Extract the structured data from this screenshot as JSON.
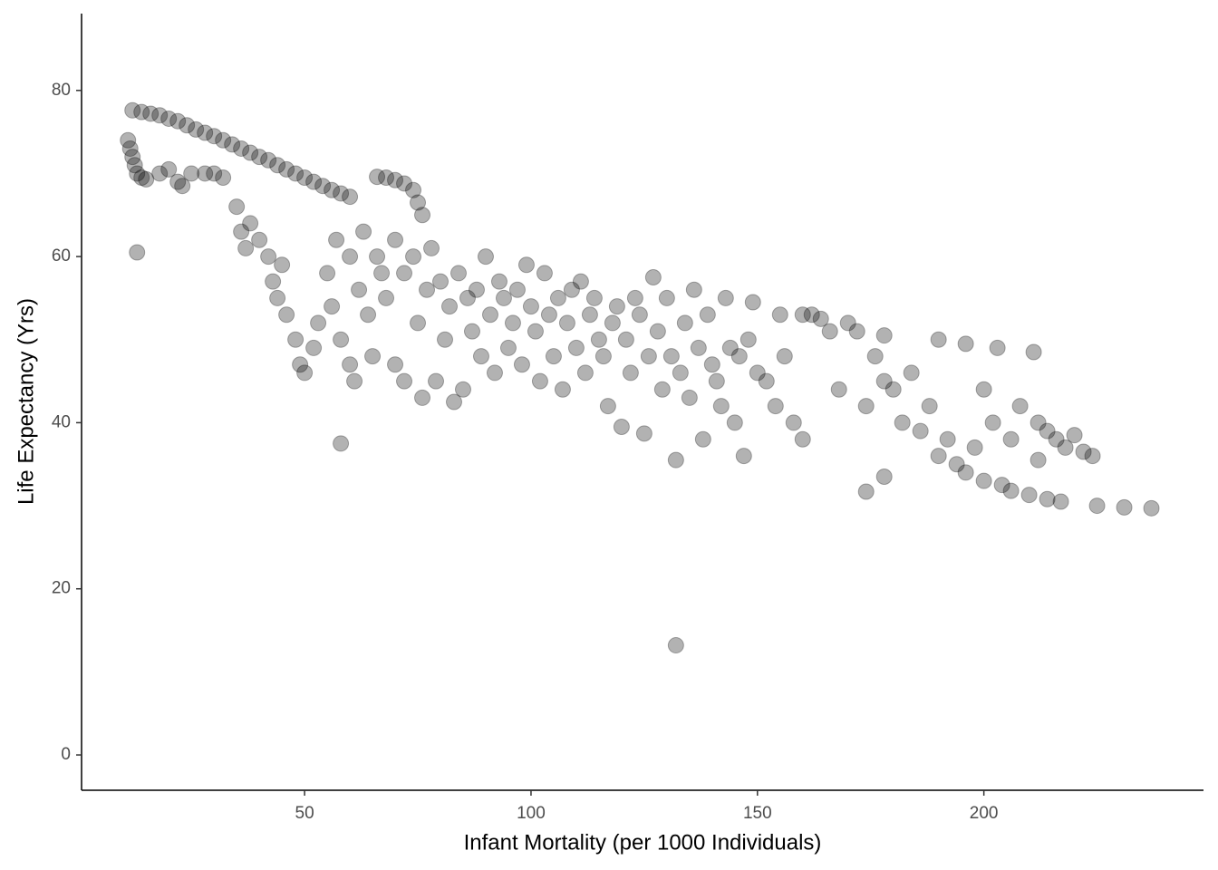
{
  "chart_data": {
    "type": "scatter",
    "x_label": "Infant Mortality (per 1000 Individuals)",
    "y_label": "Life Expectancy (Yrs)",
    "xlim": [
      0.75,
      248.5
    ],
    "ylim": [
      -4.25,
      89.25
    ],
    "xticks": [
      50,
      100,
      150,
      200
    ],
    "yticks": [
      0,
      20,
      40,
      60,
      80
    ],
    "color": "#000000",
    "opacity": 0.3,
    "x": [
      12,
      14,
      16,
      18,
      20,
      22,
      24,
      26,
      28,
      30,
      32,
      34,
      36,
      38,
      40,
      42,
      44,
      46,
      48,
      50,
      52,
      54,
      56,
      58,
      60,
      11,
      11.5,
      12,
      12.5,
      13,
      14,
      15,
      13,
      18,
      20,
      22,
      23,
      25,
      28,
      30,
      32,
      66,
      68,
      70,
      72,
      74,
      75,
      76,
      35,
      36,
      37,
      38,
      40,
      42,
      43,
      44,
      45,
      46,
      48,
      49,
      50,
      52,
      53,
      55,
      56,
      57,
      58,
      60,
      60,
      61,
      62,
      63,
      64,
      65,
      66,
      67,
      68,
      70,
      70,
      72,
      72,
      74,
      75,
      76,
      77,
      78,
      79,
      80,
      81,
      82,
      83,
      84,
      85,
      86,
      87,
      88,
      89,
      90,
      91,
      92,
      93,
      94,
      95,
      96,
      97,
      98,
      99,
      100,
      101,
      102,
      103,
      104,
      105,
      106,
      107,
      108,
      109,
      110,
      111,
      112,
      113,
      114,
      115,
      116,
      117,
      118,
      119,
      120,
      121,
      122,
      123,
      124,
      125,
      126,
      127,
      128,
      129,
      130,
      131,
      132,
      132,
      133,
      134,
      135,
      136,
      137,
      138,
      139,
      140,
      141,
      142,
      143,
      144,
      145,
      146,
      147,
      148,
      149,
      150,
      152,
      154,
      155,
      156,
      158,
      160,
      160,
      162,
      164,
      166,
      168,
      170,
      172,
      174,
      174,
      176,
      178,
      178,
      178,
      180,
      182,
      184,
      186,
      188,
      190,
      190,
      192,
      194,
      196,
      196,
      198,
      200,
      200,
      202,
      203,
      204,
      206,
      206,
      208,
      210,
      211,
      212,
      212,
      214,
      214,
      216,
      217,
      218,
      220,
      222,
      224,
      225,
      231,
      237,
      58
    ],
    "values": [
      77.6,
      77.4,
      77.2,
      77,
      76.6,
      76.3,
      75.8,
      75.3,
      74.9,
      74.5,
      74,
      73.5,
      73,
      72.5,
      72,
      71.6,
      71,
      70.5,
      70,
      69.5,
      69,
      68.5,
      68,
      67.6,
      67.2,
      74,
      73,
      72,
      71,
      70,
      69.5,
      69.3,
      60.5,
      70,
      70.5,
      69,
      68.5,
      70,
      70,
      70,
      69.5,
      69.6,
      69.5,
      69.2,
      68.8,
      68,
      66.5,
      65,
      66,
      63,
      61,
      64,
      62,
      60,
      57,
      55,
      59,
      53,
      50,
      47,
      46,
      49,
      52,
      58,
      54,
      62,
      50,
      47,
      60,
      45,
      56,
      63,
      53,
      48,
      60,
      58,
      55,
      47,
      62,
      45,
      58,
      60,
      52,
      43,
      56,
      61,
      45,
      57,
      50,
      54,
      42.5,
      58,
      44,
      55,
      51,
      56,
      48,
      60,
      53,
      46,
      57,
      55,
      49,
      52,
      56,
      47,
      59,
      54,
      51,
      45,
      58,
      53,
      48,
      55,
      44,
      52,
      56,
      49,
      57,
      46,
      53,
      55,
      50,
      48,
      42,
      52,
      54,
      39.5,
      50,
      46,
      55,
      53,
      38.7,
      48,
      57.5,
      51,
      44,
      55,
      48,
      13.2,
      35.5,
      46,
      52,
      43,
      56,
      49,
      38,
      53,
      47,
      45,
      42,
      55,
      49,
      40,
      48,
      36,
      50,
      54.5,
      46,
      45,
      42,
      53,
      48,
      40,
      38,
      53,
      53,
      52.5,
      51,
      44,
      52,
      51,
      31.7,
      42,
      48,
      33.5,
      45,
      50.5,
      44,
      40,
      46,
      39,
      42,
      50,
      36,
      38,
      35,
      49.5,
      34,
      37,
      44,
      33,
      40,
      49,
      32.5,
      38,
      31.8,
      42,
      31.3,
      48.5,
      35.5,
      40,
      30.8,
      39,
      38,
      30.5,
      37,
      38.5,
      36.5,
      36,
      30,
      29.8,
      29.7,
      37.5
    ]
  }
}
